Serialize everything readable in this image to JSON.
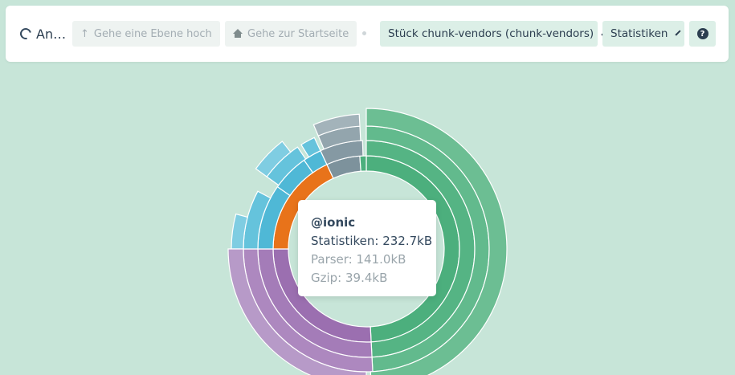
{
  "toolbar": {
    "app_title": "An…",
    "go_up_label": "Gehe eine Ebene hoch",
    "go_home_label": "Gehe zur Startseite",
    "chunk_select": "Stück chunk-vendors (chunk-vendors)",
    "size_select": "Statistiken",
    "help_label": "?"
  },
  "tooltip": {
    "name": "@ionic",
    "stat_line": "Statistiken: 232.7kB",
    "parser_line": "Parser: 141.0kB",
    "gzip_line": "Gzip: 39.4kB"
  },
  "colors": {
    "background": "#c7e5d8",
    "green": "#4caf7d",
    "purple": "#9b6fb0",
    "orange": "#e8731a",
    "blue": "#4fb8d6",
    "slate": "#7d929c"
  },
  "icons": [
    "ring-icon",
    "arrow-up-icon",
    "home-icon",
    "chevron-down-icon",
    "help-icon"
  ]
}
